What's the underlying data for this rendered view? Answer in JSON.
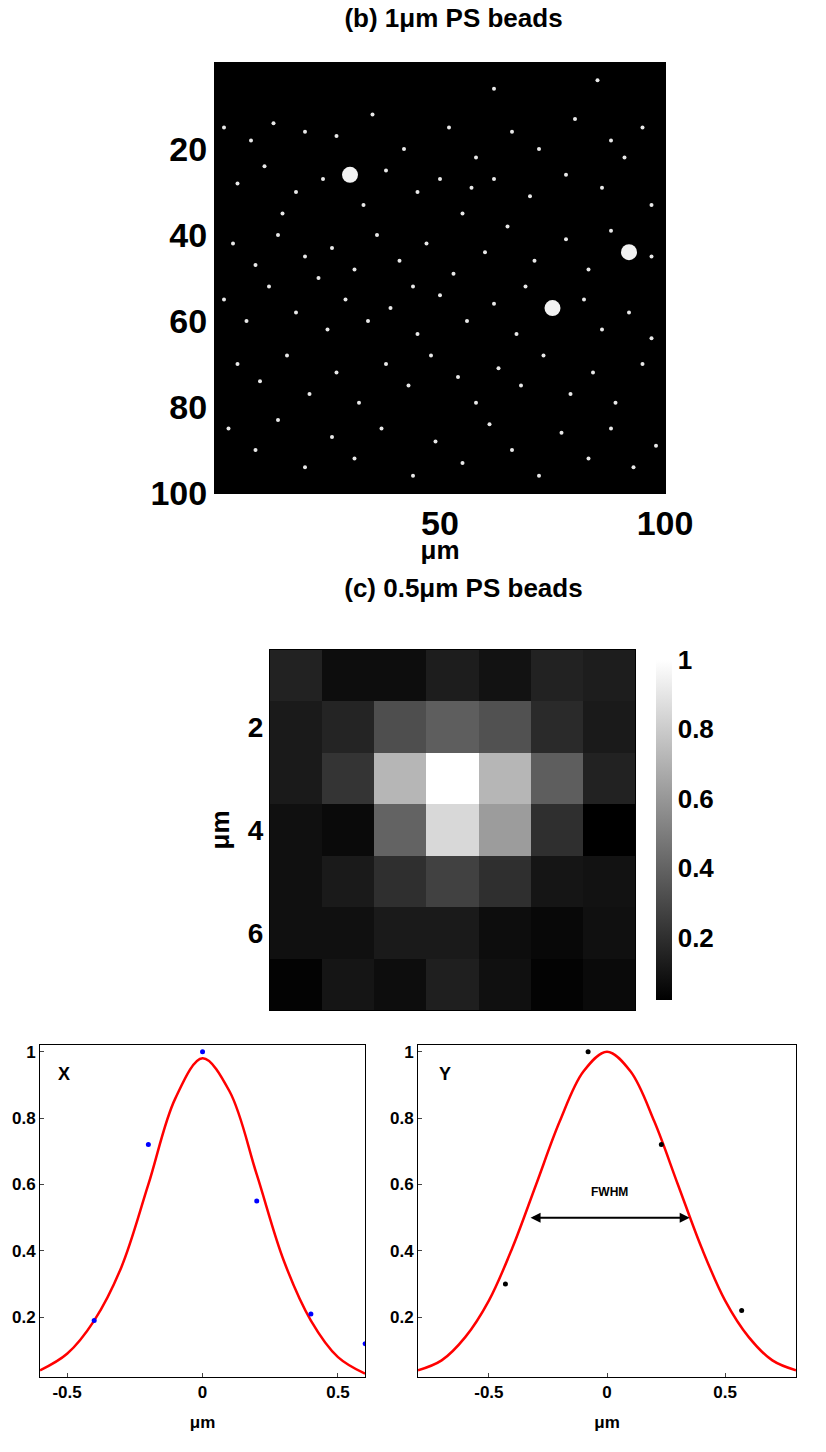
{
  "chart_data": [
    {
      "type": "scatter",
      "title": "(b) 1μm PS beads",
      "x_label": "μm",
      "xlim": [
        0,
        100
      ],
      "xticks": [
        50,
        100
      ],
      "ylim": [
        100,
        0
      ],
      "yticks": [
        20,
        40,
        60,
        80,
        100
      ],
      "grid": false,
      "series": [
        {
          "marker": "small",
          "color": "#e8e8e8",
          "x": [
            2,
            8,
            13,
            20,
            27,
            35,
            42,
            52,
            58,
            66,
            72,
            80,
            88,
            95,
            62,
            85,
            5,
            11,
            18,
            24,
            38,
            45,
            50,
            57,
            62,
            70,
            78,
            86,
            91,
            97,
            15,
            33,
            55,
            4,
            9,
            14,
            20,
            26,
            31,
            36,
            41,
            47,
            53,
            60,
            65,
            71,
            78,
            83,
            88,
            97,
            23,
            2,
            7,
            12,
            18,
            25,
            29,
            34,
            39,
            45,
            50,
            56,
            62,
            67,
            69,
            82,
            86,
            92,
            97,
            44,
            5,
            10,
            16,
            21,
            27,
            32,
            38,
            43,
            48,
            54,
            58,
            63,
            68,
            73,
            79,
            84,
            89,
            95,
            3,
            9,
            14,
            20,
            26,
            31,
            37,
            44,
            49,
            55,
            61,
            66,
            72,
            77,
            83,
            88,
            93,
            98
          ],
          "y": [
            15,
            18,
            14,
            16,
            17,
            12,
            20,
            15,
            22,
            16,
            20,
            13,
            18,
            15,
            6,
            4,
            28,
            24,
            30,
            27,
            25,
            30,
            27,
            29,
            27,
            31,
            26,
            29,
            22,
            33,
            35,
            33,
            35,
            42,
            47,
            40,
            45,
            43,
            48,
            40,
            46,
            42,
            49,
            44,
            38,
            46,
            41,
            48,
            39,
            45,
            50,
            55,
            60,
            52,
            58,
            62,
            55,
            60,
            57,
            63,
            54,
            60,
            56,
            63,
            52,
            55,
            62,
            58,
            64,
            52,
            70,
            74,
            68,
            77,
            72,
            79,
            70,
            75,
            68,
            73,
            79,
            71,
            75,
            68,
            77,
            72,
            79,
            70,
            85,
            90,
            83,
            94,
            87,
            92,
            85,
            96,
            88,
            93,
            84,
            90,
            96,
            86,
            92,
            85,
            94,
            89
          ]
        },
        {
          "marker": "large",
          "color": "#f2f2f2",
          "x": [
            30,
            92,
            75
          ],
          "y": [
            26,
            44,
            57
          ]
        }
      ]
    },
    {
      "type": "heatmap",
      "title": "(c) 0.5μm PS beads",
      "y_label": "μm",
      "color": "gray",
      "x": [
        1,
        2,
        3,
        4,
        5,
        6,
        7
      ],
      "y": [
        1,
        2,
        3,
        4,
        5,
        6,
        7
      ],
      "xlim": [
        0.5,
        7.5
      ],
      "xticks": [],
      "ylim": [
        7.5,
        0.5
      ],
      "yticks": [
        2,
        4,
        6
      ],
      "tick_labels": "y",
      "z": [
        [
          0.15,
          0.07,
          0.07,
          0.13,
          0.09,
          0.15,
          0.13
        ],
        [
          0.12,
          0.16,
          0.32,
          0.38,
          0.33,
          0.18,
          0.12
        ],
        [
          0.12,
          0.22,
          0.72,
          1.0,
          0.72,
          0.38,
          0.15
        ],
        [
          0.08,
          0.06,
          0.4,
          0.85,
          0.62,
          0.2,
          0.02
        ],
        [
          0.08,
          0.12,
          0.2,
          0.27,
          0.2,
          0.1,
          0.09
        ],
        [
          0.08,
          0.08,
          0.12,
          0.12,
          0.07,
          0.05,
          0.08
        ],
        [
          0.03,
          0.1,
          0.07,
          0.14,
          0.08,
          0.03,
          0.06
        ]
      ],
      "zlim": [
        0.02,
        1
      ],
      "zticks": [
        0.2,
        0.4,
        0.6,
        0.8,
        1
      ]
    },
    {
      "type": "line",
      "x_label": "μm",
      "annotations": [
        {
          "text": "X"
        }
      ],
      "xlim": [
        -0.6,
        0.6
      ],
      "xticks": [
        -0.5,
        0,
        0.5
      ],
      "ylim": [
        0.02,
        1.02
      ],
      "yticks": [
        0.2,
        0.4,
        0.6,
        0.8,
        1
      ],
      "grid": false,
      "series": [
        {
          "type": "line",
          "color": "#ff0000",
          "line_style": "solid",
          "x": [
            -0.6,
            -0.5,
            -0.4,
            -0.3,
            -0.2,
            -0.1,
            0,
            0.1,
            0.2,
            0.3,
            0.4,
            0.5,
            0.6
          ],
          "values": [
            0.04,
            0.09,
            0.19,
            0.35,
            0.6,
            0.86,
            0.98,
            0.88,
            0.63,
            0.37,
            0.19,
            0.08,
            0.03
          ]
        },
        {
          "type": "scatter",
          "color": "#0000ff",
          "marker": "dot",
          "x": [
            -0.4,
            -0.2,
            0,
            0.2,
            0.4,
            0.6
          ],
          "values": [
            0.19,
            0.72,
            1.0,
            0.55,
            0.21,
            0.12
          ]
        }
      ]
    },
    {
      "type": "line",
      "x_label": "μm",
      "annotations": [
        {
          "text": "Y"
        }
      ],
      "fwhm": {
        "text": "FWHM",
        "x": [
          -0.33,
          0.35
        ],
        "y": 0.5
      },
      "xlim": [
        -0.8,
        0.8
      ],
      "xticks": [
        -0.5,
        0,
        0.5
      ],
      "ylim": [
        0.02,
        1.02
      ],
      "yticks": [
        0.2,
        0.4,
        0.6,
        0.8,
        1
      ],
      "grid": false,
      "series": [
        {
          "type": "line",
          "color": "#ff0000",
          "line_style": "solid",
          "x": [
            -0.8,
            -0.7,
            -0.6,
            -0.5,
            -0.4,
            -0.3,
            -0.2,
            -0.1,
            0,
            0.1,
            0.2,
            0.3,
            0.4,
            0.5,
            0.6,
            0.7,
            0.8
          ],
          "values": [
            0.04,
            0.07,
            0.14,
            0.25,
            0.41,
            0.6,
            0.79,
            0.94,
            1.0,
            0.94,
            0.79,
            0.6,
            0.41,
            0.25,
            0.14,
            0.07,
            0.04
          ]
        },
        {
          "type": "scatter",
          "color": "#000000",
          "marker": "dot",
          "x": [
            -0.43,
            -0.08,
            0.23,
            0.57
          ],
          "values": [
            0.3,
            1.0,
            0.72,
            0.22
          ]
        }
      ]
    }
  ]
}
